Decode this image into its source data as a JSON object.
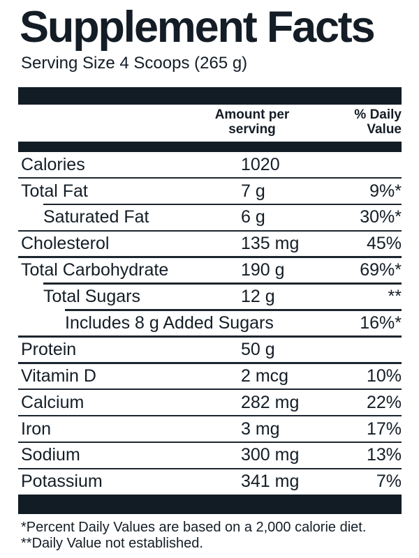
{
  "colors": {
    "ink": "#141d26",
    "bar": "#121c24",
    "rule": "#1c252e"
  },
  "label": {
    "title": "Supplement Facts",
    "serving_size": "Serving Size 4 Scoops (265 g)",
    "header": {
      "amount_line1": "Amount per",
      "amount_line2": "serving",
      "dv_line1": "% Daily",
      "dv_line2": "Value"
    },
    "rows": [
      {
        "label": "Calories",
        "amount": "1020",
        "dv": "",
        "indent": 0,
        "rule_above": "none"
      },
      {
        "label": "Total Fat",
        "amount": "7 g",
        "dv": "9%*",
        "indent": 0,
        "rule_above": "full"
      },
      {
        "label": "Saturated Fat",
        "amount": "6 g",
        "dv": "30%*",
        "indent": 1,
        "rule_above": "indent1"
      },
      {
        "label": "Cholesterol",
        "amount": "135 mg",
        "dv": "45%",
        "indent": 0,
        "rule_above": "full"
      },
      {
        "label": "Total Carbohydrate",
        "amount": "190 g",
        "dv": "69%*",
        "indent": 0,
        "rule_above": "full"
      },
      {
        "label": "Total Sugars",
        "amount": "12 g",
        "dv": "**",
        "indent": 1,
        "rule_above": "indent1"
      },
      {
        "label": "Includes 8 g Added Sugars",
        "amount": "",
        "dv": "16%*",
        "indent": 2,
        "rule_above": "indent2"
      },
      {
        "label": "Protein",
        "amount": "50 g",
        "dv": "",
        "indent": 0,
        "rule_above": "full"
      },
      {
        "label": "Vitamin D",
        "amount": "2 mcg",
        "dv": "10%",
        "indent": 0,
        "rule_above": "full"
      },
      {
        "label": "Calcium",
        "amount": "282 mg",
        "dv": "22%",
        "indent": 0,
        "rule_above": "full"
      },
      {
        "label": "Iron",
        "amount": "3 mg",
        "dv": "17%",
        "indent": 0,
        "rule_above": "full"
      },
      {
        "label": "Sodium",
        "amount": "300 mg",
        "dv": "13%",
        "indent": 0,
        "rule_above": "full"
      },
      {
        "label": "Potassium",
        "amount": "341 mg",
        "dv": "7%",
        "indent": 0,
        "rule_above": "full"
      }
    ],
    "footnotes": [
      "*Percent Daily Values are based on a 2,000 calorie diet.",
      "**Daily Value not established."
    ]
  }
}
